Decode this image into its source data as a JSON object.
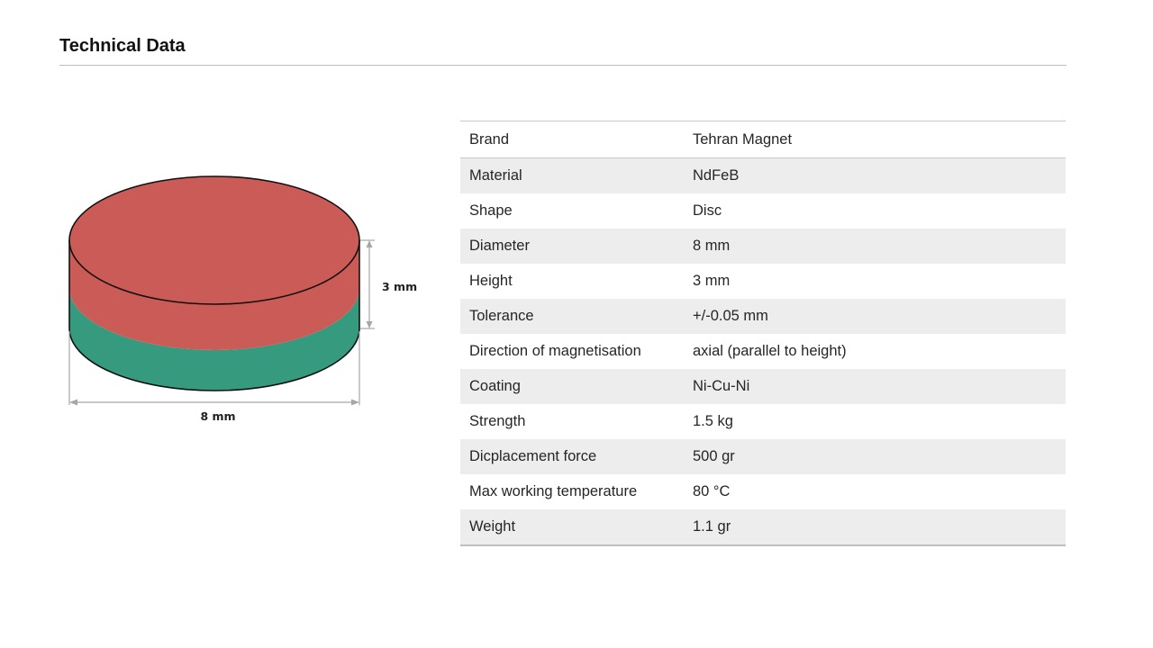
{
  "header": {
    "title": "Technical Data"
  },
  "figure": {
    "height_label": "3 mm",
    "diameter_label": "8 mm",
    "colors": {
      "north": "#CB5B57",
      "south": "#369A7F",
      "outline": "#111111",
      "dimension_line": "#a6a6a6"
    }
  },
  "specs": [
    {
      "key": "Brand",
      "value": "Tehran Magnet"
    },
    {
      "key": "Material",
      "value": "NdFeB"
    },
    {
      "key": "Shape",
      "value": "Disc"
    },
    {
      "key": "Diameter",
      "value": "8 mm"
    },
    {
      "key": "Height",
      "value": "3 mm"
    },
    {
      "key": "Tolerance",
      "value": "+/-0.05 mm"
    },
    {
      "key": "Direction of magnetisation",
      "value": "axial (parallel to height)"
    },
    {
      "key": "Coating",
      "value": "Ni-Cu-Ni"
    },
    {
      "key": "Strength",
      "value": "1.5 kg"
    },
    {
      "key": "Dicplacement force",
      "value": "500 gr"
    },
    {
      "key": "Max working temperature",
      "value": "80 °C"
    },
    {
      "key": "Weight",
      "value": "1.1 gr"
    }
  ]
}
